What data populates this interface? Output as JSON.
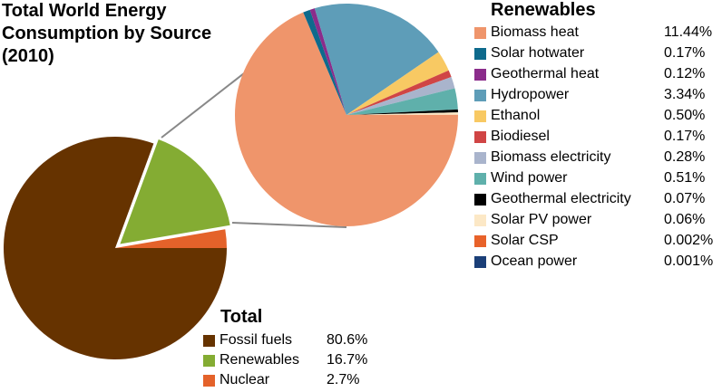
{
  "chart_data": [
    {
      "type": "pie",
      "title": "Total World Energy Consumption by Source (2010)",
      "legend_title": "Total",
      "legend_placement": "bottom-right",
      "slices": [
        {
          "label": "Nuclear",
          "value": 2.7,
          "display": "2.7%",
          "color": "#e4622a"
        },
        {
          "label": "Renewables",
          "value": 16.7,
          "display": "16.7%",
          "color": "#84ac33",
          "exploded": true
        },
        {
          "label": "Fossil fuels",
          "value": 80.6,
          "display": "80.6%",
          "color": "#663300"
        }
      ],
      "legend_order": [
        "Fossil fuels",
        "Renewables",
        "Nuclear"
      ]
    },
    {
      "type": "pie",
      "title": "Renewables",
      "legend_placement": "right",
      "breakdown_of": "Renewables",
      "slices": [
        {
          "label": "Biomass heat",
          "value": 11.44,
          "display": "11.44%",
          "color": "#ef956b"
        },
        {
          "label": "Solar hotwater",
          "value": 0.17,
          "display": "0.17%",
          "color": "#0e6a8c"
        },
        {
          "label": "Geothermal heat",
          "value": 0.12,
          "display": "0.12%",
          "color": "#8b2c8b"
        },
        {
          "label": "Hydropower",
          "value": 3.34,
          "display": "3.34%",
          "color": "#5e9db8"
        },
        {
          "label": "Ethanol",
          "value": 0.5,
          "display": "0.50%",
          "color": "#f8c963"
        },
        {
          "label": "Biodiesel",
          "value": 0.17,
          "display": "0.17%",
          "color": "#d04545"
        },
        {
          "label": "Biomass electricity",
          "value": 0.28,
          "display": "0.28%",
          "color": "#a9b4cc"
        },
        {
          "label": "Wind power",
          "value": 0.51,
          "display": "0.51%",
          "color": "#5fb0ab"
        },
        {
          "label": "Geothermal electricity",
          "value": 0.07,
          "display": "0.07%",
          "color": "#000000"
        },
        {
          "label": "Solar PV power",
          "value": 0.06,
          "display": "0.06%",
          "color": "#fce8c6"
        },
        {
          "label": "Solar CSP",
          "value": 0.002,
          "display": "0.002%",
          "color": "#e8622a"
        },
        {
          "label": "Ocean power",
          "value": 0.001,
          "display": "0.001%",
          "color": "#1b3f78"
        }
      ]
    }
  ],
  "title_lines": [
    "Total World Energy",
    "Consumption by Source",
    "(2010)"
  ]
}
